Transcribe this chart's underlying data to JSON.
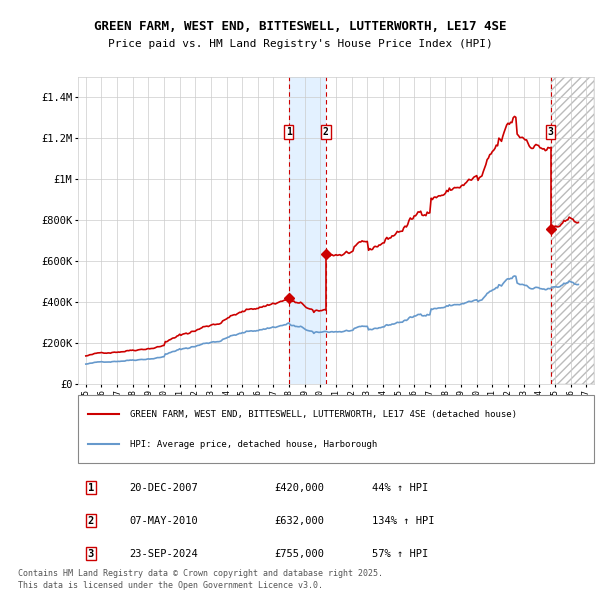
{
  "title": "GREEN FARM, WEST END, BITTESWELL, LUTTERWORTH, LE17 4SE",
  "subtitle": "Price paid vs. HM Land Registry's House Price Index (HPI)",
  "legend_line1": "GREEN FARM, WEST END, BITTESWELL, LUTTERWORTH, LE17 4SE (detached house)",
  "legend_line2": "HPI: Average price, detached house, Harborough",
  "footer": "Contains HM Land Registry data © Crown copyright and database right 2025.\nThis data is licensed under the Open Government Licence v3.0.",
  "transactions": [
    {
      "num": 1,
      "date": "20-DEC-2007",
      "price": "£420,000",
      "hpi": "44% ↑ HPI",
      "year": 2007.97,
      "value": 420000
    },
    {
      "num": 2,
      "date": "07-MAY-2010",
      "price": "£632,000",
      "hpi": "134% ↑ HPI",
      "year": 2010.35,
      "value": 632000
    },
    {
      "num": 3,
      "date": "23-SEP-2024",
      "price": "£755,000",
      "hpi": "57% ↑ HPI",
      "year": 2024.73,
      "value": 755000
    }
  ],
  "red_line_color": "#cc0000",
  "blue_line_color": "#6699cc",
  "dashed_color": "#cc0000",
  "shade_color": "#ddeeff",
  "ylim": [
    0,
    1500000
  ],
  "yticks": [
    0,
    200000,
    400000,
    600000,
    800000,
    1000000,
    1200000,
    1400000
  ],
  "ytick_labels": [
    "£0",
    "£200K",
    "£400K",
    "£600K",
    "£800K",
    "£1M",
    "£1.2M",
    "£1.4M"
  ],
  "xlim_start": 1994.5,
  "xlim_end": 2027.5
}
